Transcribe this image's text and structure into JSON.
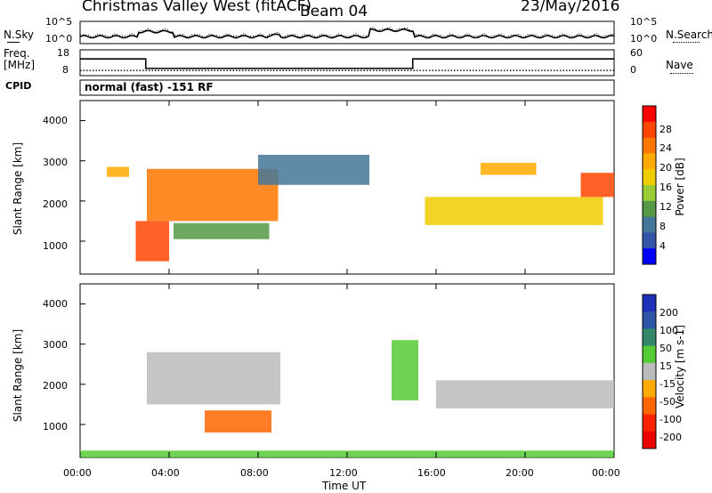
{
  "header": {
    "station": "Christmas Valley West (fitACF)",
    "beam": "Beam 04",
    "date": "23/May/2016"
  },
  "sky_panel": {
    "left_label": "N.Sky",
    "right_label": "N.Search",
    "left_ticks": [
      "10^5",
      "10^0"
    ],
    "right_ticks": [
      "10^5",
      "10^0"
    ]
  },
  "freq_panel": {
    "left_label_1": "Freq.",
    "left_label_2": "[MHz]",
    "right_label": "Nave",
    "left_ticks": [
      "18",
      "8"
    ],
    "right_ticks": [
      "60",
      "0"
    ]
  },
  "cpid_panel": {
    "label": "CPID",
    "text": "normal (fast) -151 RF"
  },
  "power_panel": {
    "ylabel": "Slant Range [km]",
    "yticks": [
      "4000",
      "3000",
      "2000",
      "1000"
    ],
    "colorbar_label": "Power [dB]",
    "colorbar_ticks": [
      "28",
      "24",
      "20",
      "16",
      "12",
      "8",
      "4"
    ],
    "colors": [
      "#ff0000",
      "#ff4400",
      "#ff7700",
      "#ffaa00",
      "#eecc00",
      "#99cc33",
      "#559944",
      "#447799",
      "#3355aa",
      "#0000ff"
    ]
  },
  "velocity_panel": {
    "ylabel": "Slant Range [km]",
    "yticks": [
      "4000",
      "3000",
      "2000",
      "1000"
    ],
    "colorbar_label": "Velocity [m s-1]",
    "colorbar_ticks": [
      "200",
      "100",
      "50",
      "15",
      "-15",
      "-50",
      "-100",
      "-200"
    ],
    "colors": [
      "#1f2fb8",
      "#2e56a8",
      "#33886a",
      "#55cc33",
      "#bbbbbb",
      "#ffaa00",
      "#ff6600",
      "#ff2200",
      "#ee0000"
    ]
  },
  "x_axis": {
    "label": "Time UT",
    "ticks": [
      "00:00",
      "04:00",
      "08:00",
      "12:00",
      "16:00",
      "20:00",
      "00:00"
    ]
  },
  "chart_data": {
    "type": "heatmap",
    "title": "Christmas Valley West (fitACF) Beam 04 23/May/2016",
    "xlabel": "Time UT",
    "ylabel": "Slant Range [km]",
    "xlim": [
      0,
      24
    ],
    "ylim": [
      180,
      4500
    ],
    "frequency": [
      {
        "t0": 0.0,
        "t1": 2.95,
        "value": 14.5
      },
      {
        "t0": 2.95,
        "t1": 14.95,
        "value": 10.8
      },
      {
        "t0": 14.95,
        "t1": 24.0,
        "value": 14.5
      }
    ],
    "nave_level": 12,
    "power_bands": [
      {
        "t0": 3.0,
        "t1": 8.9,
        "r0": 1500,
        "r1": 2800,
        "value": 24
      },
      {
        "t0": 2.5,
        "t1": 4.0,
        "r0": 500,
        "r1": 1500,
        "value": 26
      },
      {
        "t0": 1.2,
        "t1": 2.2,
        "r0": 2600,
        "r1": 2850,
        "value": 22
      },
      {
        "t0": 4.2,
        "t1": 8.5,
        "r0": 1050,
        "r1": 1450,
        "value": 12
      },
      {
        "t0": 8.0,
        "t1": 13.0,
        "r0": 2400,
        "r1": 3150,
        "value": 8
      },
      {
        "t0": 15.5,
        "t1": 23.5,
        "r0": 1400,
        "r1": 2100,
        "value": 18
      },
      {
        "t0": 18.0,
        "t1": 20.5,
        "r0": 2650,
        "r1": 2950,
        "value": 22
      },
      {
        "t0": 22.5,
        "t1": 24.0,
        "r0": 2100,
        "r1": 2700,
        "value": 28
      }
    ],
    "velocity_bands": [
      {
        "t0": 3.0,
        "t1": 9.0,
        "r0": 1500,
        "r1": 2800,
        "value": -5
      },
      {
        "t0": 5.6,
        "t1": 8.6,
        "r0": 800,
        "r1": 1350,
        "value": -60
      },
      {
        "t0": 14.0,
        "t1": 15.2,
        "r0": 1600,
        "r1": 3100,
        "value": 20
      },
      {
        "t0": 0.0,
        "t1": 24.0,
        "r0": 180,
        "r1": 350,
        "value": 20
      },
      {
        "t0": 16.0,
        "t1": 24.0,
        "r0": 1400,
        "r1": 2100,
        "value": 0
      }
    ]
  }
}
